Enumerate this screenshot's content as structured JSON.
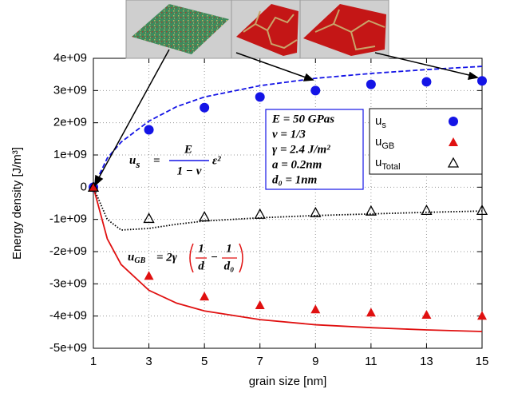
{
  "chart_data": {
    "type": "scatter",
    "xlabel": "grain size [nm]",
    "ylabel": "Energy density [J/m³]",
    "xlim": [
      1,
      15
    ],
    "xticks": [
      1,
      3,
      5,
      7,
      9,
      11,
      13,
      15
    ],
    "ylim": [
      -5000000000,
      4000000000
    ],
    "yticks": [
      {
        "value": 4000000000,
        "label": "4e+09"
      },
      {
        "value": 3000000000,
        "label": "3e+09"
      },
      {
        "value": 2000000000,
        "label": "2e+09"
      },
      {
        "value": 1000000000,
        "label": "1e+09"
      },
      0,
      {
        "value": -1000000000,
        "label": "-1e+09"
      },
      {
        "value": -2000000000,
        "label": "-2e+09"
      },
      {
        "value": -3000000000,
        "label": "-3e+09"
      },
      {
        "value": -4000000000,
        "label": "-4e+09"
      },
      {
        "value": -5000000000,
        "label": "-5e+09"
      }
    ],
    "grid": true,
    "legend": "upper right",
    "x": [
      1,
      3,
      5,
      7,
      9,
      11,
      13,
      15
    ],
    "series": [
      {
        "name": "u",
        "name_sub": "s",
        "color": "#1414e6",
        "marker": "circle",
        "values": [
          0,
          1780000000,
          2470000000,
          2800000000,
          3000000000,
          3190000000,
          3270000000,
          3300000000
        ]
      },
      {
        "name": "u",
        "name_sub": "GB",
        "color": "#e01010",
        "marker": "triangle",
        "values": [
          0,
          -2750000000,
          -3390000000,
          -3660000000,
          -3790000000,
          -3890000000,
          -3960000000,
          -3990000000
        ]
      },
      {
        "name": "u",
        "name_sub": "Total",
        "color": "#000000",
        "marker": "open-triangle",
        "values": [
          0,
          -970000000,
          -920000000,
          -840000000,
          -790000000,
          -740000000,
          -720000000,
          -720000000
        ]
      }
    ],
    "curves": [
      {
        "color": "#1414e6",
        "style": "dashed",
        "x": [
          1,
          1.5,
          2,
          3,
          4,
          5,
          7,
          9,
          11,
          13,
          15
        ],
        "values": [
          0,
          900000000,
          1400000000,
          2050000000,
          2500000000,
          2800000000,
          3150000000,
          3380000000,
          3530000000,
          3650000000,
          3750000000
        ]
      },
      {
        "color": "#e01010",
        "style": "solid",
        "x": [
          1,
          1.5,
          2,
          3,
          4,
          5,
          7,
          9,
          11,
          13,
          15
        ],
        "values": [
          0,
          -1600000000,
          -2400000000,
          -3200000000,
          -3600000000,
          -3840000000,
          -4110000000,
          -4270000000,
          -4360000000,
          -4430000000,
          -4480000000
        ]
      },
      {
        "color": "#000000",
        "style": "dotted",
        "x": [
          1,
          1.5,
          2,
          3,
          4,
          5,
          7,
          9,
          11,
          13,
          15
        ],
        "values": [
          0,
          -1000000000,
          -1330000000,
          -1280000000,
          -1150000000,
          -1050000000,
          -950000000,
          -880000000,
          -830000000,
          -780000000,
          -740000000
        ]
      }
    ],
    "parameters": [
      "E = 50 GPas",
      "ν = 1/3",
      "γ = 2.4 J/m²",
      "a = 0.2nm",
      "d₀ = 1nm"
    ],
    "equation_us": {
      "lhs": "u",
      "sub": "s",
      "eq": "=",
      "numerator": "E",
      "denominator": "1 − ν",
      "tail": "ε²"
    },
    "equation_ugb": {
      "lhs": "u",
      "sub": "GB",
      "eq": "= 2γ",
      "numerator1": "1",
      "denominator1": "d",
      "minus": "−",
      "numerator2": "1",
      "denominator2": "d₀"
    }
  }
}
